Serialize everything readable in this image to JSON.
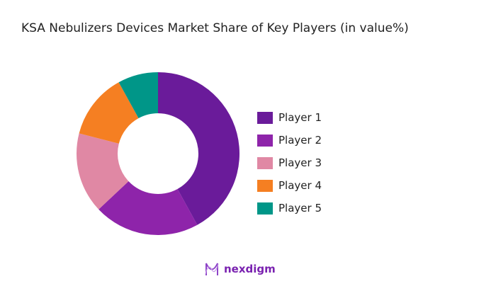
{
  "chart_data": {
    "type": "pie",
    "donut": true,
    "title": "KSA Nebulizers Devices Market Share of Key Players (in value%)",
    "categories": [
      "Player 1",
      "Player 2",
      "Player 3",
      "Player 4",
      "Player 5"
    ],
    "values": [
      42,
      21,
      16,
      13,
      8
    ],
    "colors": [
      "#6a1b9a",
      "#8e24aa",
      "#e088a4",
      "#f57f22",
      "#009688"
    ],
    "legend_position": "right"
  },
  "logo": {
    "text": "nexdigm",
    "color": "#7a22b0"
  }
}
